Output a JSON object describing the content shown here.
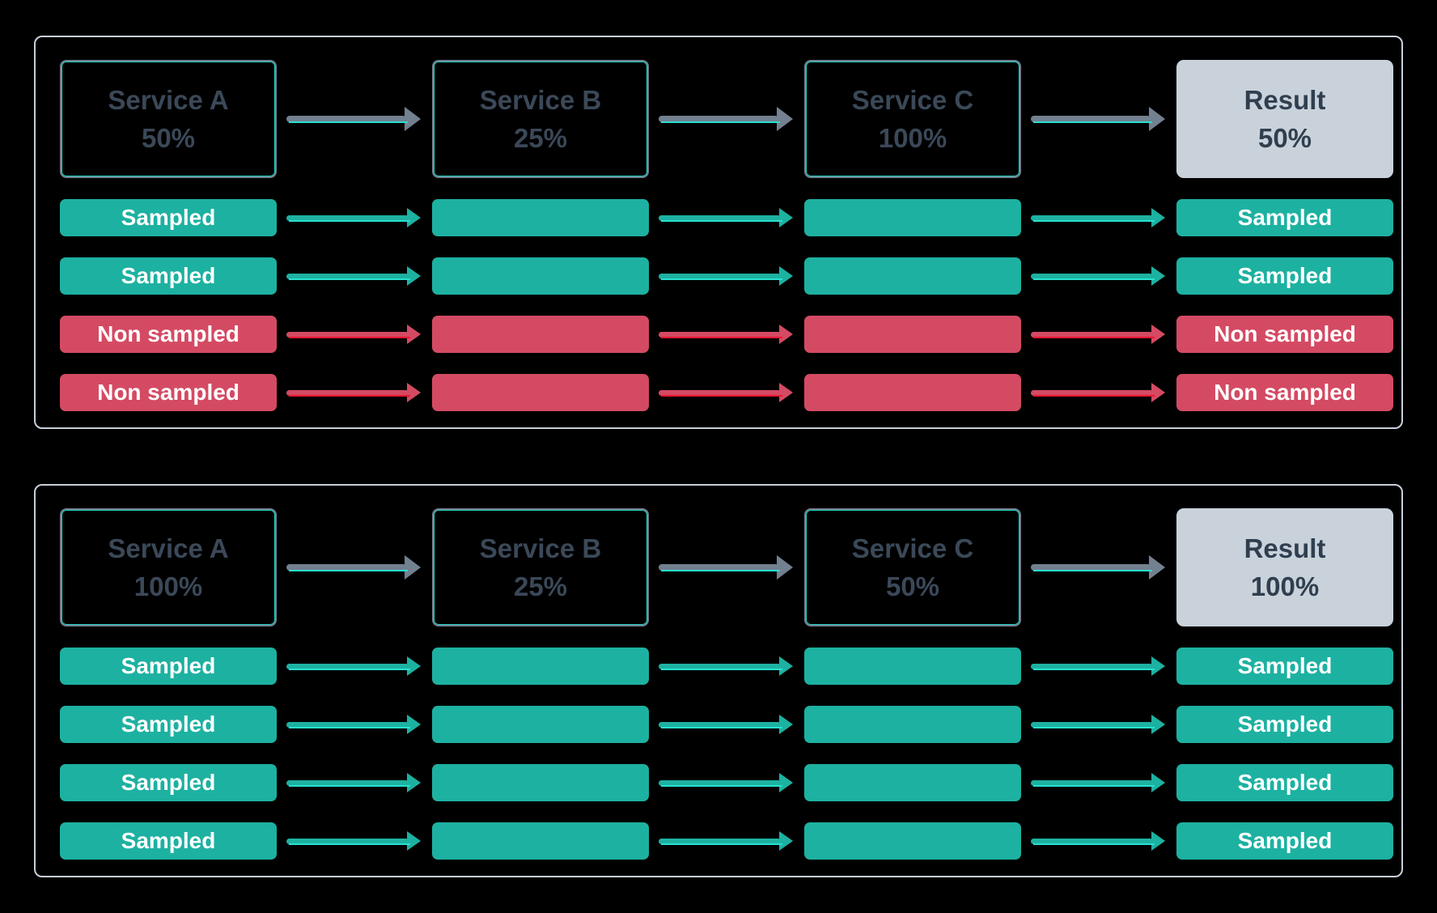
{
  "colors": {
    "background": "#000000",
    "panel_border": "#c7d0da",
    "service_border": "#72808f",
    "service_inner_line": "#23d6c6",
    "service_text": "#3a4858",
    "result_bg": "#c9d1da",
    "result_text": "#303f4f",
    "sampled_bg": "#1db1a1",
    "non_sampled_bg": "#d54a63",
    "bar_text": "#ffffff",
    "arrow_service": "#72808f",
    "arrow_sampled": "#1db1a1",
    "arrow_non_sampled": "#d54a63",
    "accent_teal": "#27e0d0",
    "accent_red": "#ed1430"
  },
  "panels": [
    {
      "id": "scenario-1",
      "services": [
        {
          "kind": "service",
          "name": "Service A",
          "rate": "50%"
        },
        {
          "kind": "service",
          "name": "Service B",
          "rate": "25%"
        },
        {
          "kind": "service",
          "name": "Service C",
          "rate": "100%"
        },
        {
          "kind": "result",
          "name": "Result",
          "rate": "50%"
        }
      ],
      "traces": [
        {
          "status": "sampled",
          "labels": [
            "Sampled",
            "",
            "",
            "Sampled"
          ]
        },
        {
          "status": "sampled",
          "labels": [
            "Sampled",
            "",
            "",
            "Sampled"
          ]
        },
        {
          "status": "non_sampled",
          "labels": [
            "Non sampled",
            "",
            "",
            "Non sampled"
          ]
        },
        {
          "status": "non_sampled",
          "labels": [
            "Non sampled",
            "",
            "",
            "Non sampled"
          ]
        }
      ]
    },
    {
      "id": "scenario-2",
      "services": [
        {
          "kind": "service",
          "name": "Service A",
          "rate": "100%"
        },
        {
          "kind": "service",
          "name": "Service B",
          "rate": "25%"
        },
        {
          "kind": "service",
          "name": "Service C",
          "rate": "50%"
        },
        {
          "kind": "result",
          "name": "Result",
          "rate": "100%"
        }
      ],
      "traces": [
        {
          "status": "sampled",
          "labels": [
            "Sampled",
            "",
            "",
            "Sampled"
          ]
        },
        {
          "status": "sampled",
          "labels": [
            "Sampled",
            "",
            "",
            "Sampled"
          ]
        },
        {
          "status": "sampled",
          "labels": [
            "Sampled",
            "",
            "",
            "Sampled"
          ]
        },
        {
          "status": "sampled",
          "labels": [
            "Sampled",
            "",
            "",
            "Sampled"
          ]
        }
      ]
    }
  ]
}
